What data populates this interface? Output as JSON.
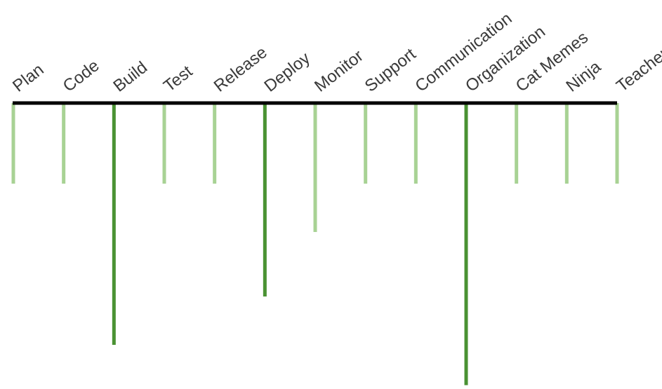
{
  "diagram": {
    "colors": {
      "axis": "#000000",
      "light": "#a8d294",
      "dark": "#4a9233",
      "text": "#3a3a3a"
    },
    "skills": [
      {
        "label": "Plan",
        "level": 1,
        "emphasis": false
      },
      {
        "label": "Code",
        "level": 1,
        "emphasis": false
      },
      {
        "label": "Build",
        "level": 3,
        "emphasis": true
      },
      {
        "label": "Test",
        "level": 1,
        "emphasis": false
      },
      {
        "label": "Release",
        "level": 1,
        "emphasis": false
      },
      {
        "label": "Deploy",
        "level": 2.4,
        "emphasis": true
      },
      {
        "label": "Monitor",
        "level": 1.6,
        "emphasis": false
      },
      {
        "label": "Support",
        "level": 1,
        "emphasis": false
      },
      {
        "label": "Communication",
        "level": 1,
        "emphasis": false
      },
      {
        "label": "Organization",
        "level": 3.5,
        "emphasis": true
      },
      {
        "label": "Cat Memes",
        "level": 1,
        "emphasis": false
      },
      {
        "label": "Ninja",
        "level": 1,
        "emphasis": false
      },
      {
        "label": "Teacher",
        "level": 1,
        "emphasis": false
      }
    ]
  }
}
